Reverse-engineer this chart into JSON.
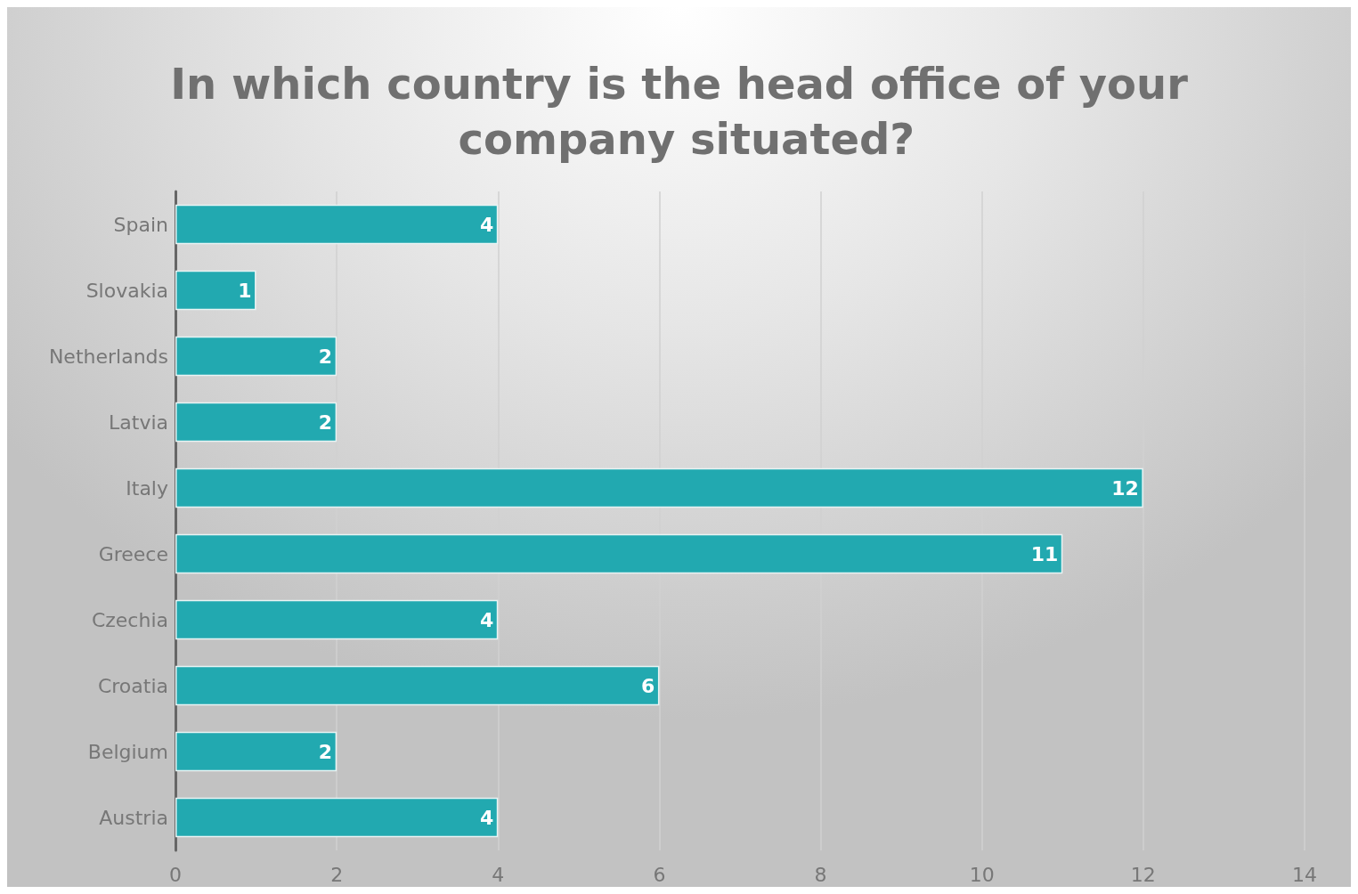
{
  "chart_data": {
    "type": "bar",
    "orientation": "horizontal",
    "title": "In which country is the head office of your company situated?",
    "categories": [
      "Spain",
      "Slovakia",
      "Netherlands",
      "Latvia",
      "Italy",
      "Greece",
      "Czechia",
      "Croatia",
      "Belgium",
      "Austria"
    ],
    "values": [
      4,
      1,
      2,
      2,
      12,
      11,
      4,
      6,
      2,
      4
    ],
    "color": "#22a9b0",
    "xlim": [
      0,
      14
    ],
    "xticks": [
      0,
      2,
      4,
      6,
      8,
      10,
      12,
      14
    ],
    "grid": "x",
    "data_labels": true
  }
}
